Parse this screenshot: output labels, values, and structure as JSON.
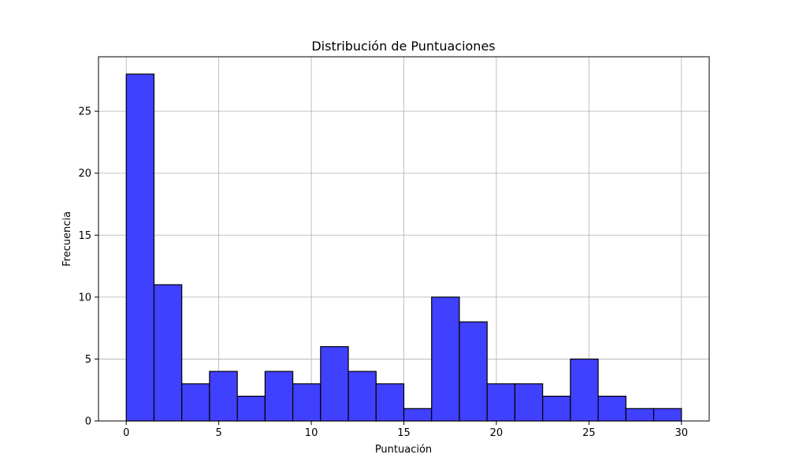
{
  "chart_data": {
    "type": "bar",
    "title": "Distribución de Puntuaciones",
    "xlabel": "Puntuación",
    "ylabel": "Frecuencia",
    "bins": {
      "edges": [
        0,
        1.5,
        3,
        4.5,
        6,
        7.5,
        9,
        10.5,
        12,
        13.5,
        15,
        16.5,
        18,
        19.5,
        21,
        22.5,
        24,
        25.5,
        27,
        28.5,
        30
      ],
      "counts": [
        28,
        11,
        3,
        4,
        2,
        4,
        3,
        6,
        4,
        3,
        1,
        10,
        8,
        3,
        3,
        2,
        5,
        2,
        1,
        1
      ]
    },
    "xlim": [
      -1.5,
      31.5
    ],
    "ylim": [
      0,
      29.4
    ],
    "xticks": [
      0,
      5,
      10,
      15,
      20,
      25,
      30
    ],
    "yticks": [
      0,
      5,
      10,
      15,
      20,
      25
    ],
    "grid": true,
    "colors": {
      "bar_fill": "#4040ff",
      "bar_edge": "#000000",
      "grid": "#b0b0b0"
    }
  }
}
